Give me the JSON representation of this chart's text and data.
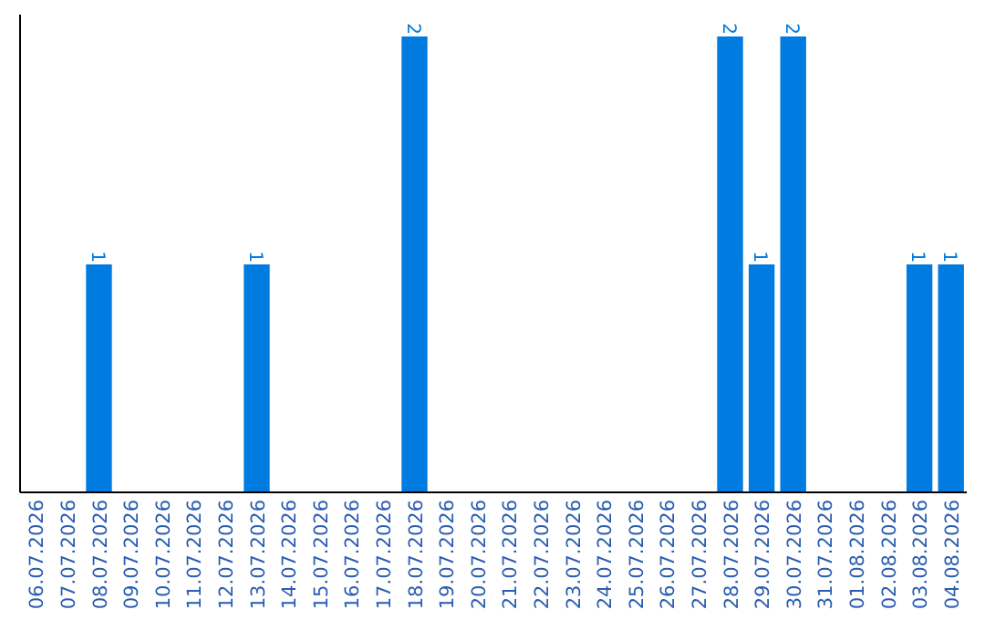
{
  "chart_data": {
    "type": "bar",
    "categories": [
      "06.07.2026",
      "07.07.2026",
      "08.07.2026",
      "09.07.2026",
      "10.07.2026",
      "11.07.2026",
      "12.07.2026",
      "13.07.2026",
      "14.07.2026",
      "15.07.2026",
      "16.07.2026",
      "17.07.2026",
      "18.07.2026",
      "19.07.2026",
      "20.07.2026",
      "21.07.2026",
      "22.07.2026",
      "23.07.2026",
      "24.07.2026",
      "25.07.2026",
      "26.07.2026",
      "27.07.2026",
      "28.07.2026",
      "29.07.2026",
      "30.07.2026",
      "31.07.2026",
      "01.08.2026",
      "02.08.2026",
      "03.08.2026",
      "04.08.2026"
    ],
    "values": [
      null,
      null,
      1,
      null,
      null,
      null,
      null,
      1,
      null,
      null,
      null,
      null,
      2,
      null,
      null,
      null,
      null,
      null,
      null,
      null,
      null,
      null,
      2,
      1,
      2,
      null,
      null,
      null,
      1,
      1
    ],
    "data_labels": true,
    "color": "#007be0",
    "tick_labels": "x"
  }
}
